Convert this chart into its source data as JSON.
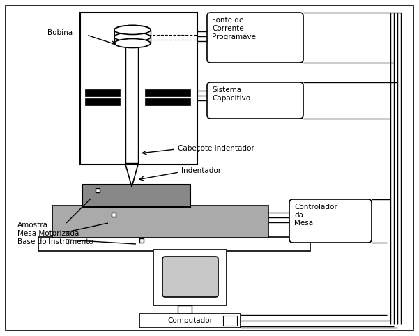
{
  "bg": "#ffffff",
  "lc": "#000000",
  "gray": "#aaaaaa",
  "lgray": "#c8c8c8",
  "dgray": "#888888",
  "white": "#ffffff",
  "fs": 7.5,
  "lw": 1.0,
  "labels": {
    "bobina": "Bobina",
    "fonte": "Fonte de\nCorrente\nProgramável",
    "sistema": "Sistema\nCapacitivo",
    "cabecote": "Cabeçote Indentador",
    "indentador": "Indentador",
    "amostra": "Amostra",
    "mesa": "Mesa Motorizada",
    "base": "Base do Instrumento",
    "controlador": "Controlador\nda\nMesa",
    "computador": "Computador"
  }
}
